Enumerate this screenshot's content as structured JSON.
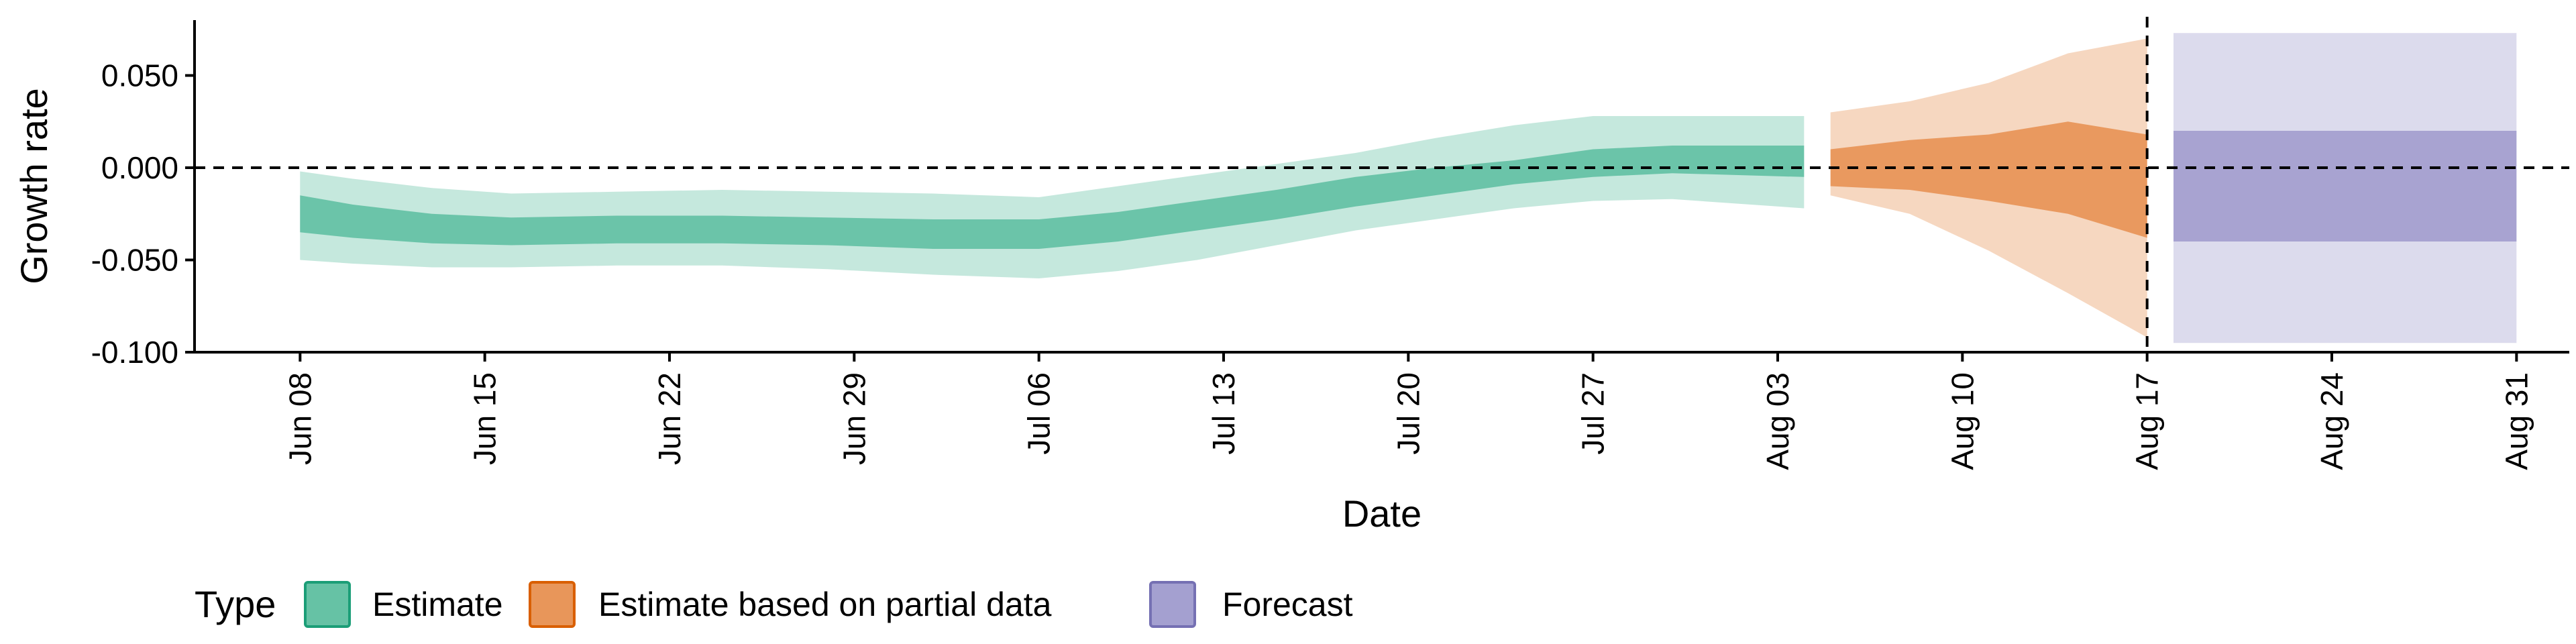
{
  "chart_data": {
    "type": "area",
    "xlabel": "Date",
    "ylabel": "Growth rate",
    "ylim": [
      -0.1,
      0.08
    ],
    "xlim": [
      "2021-06-04",
      "2021-09-02"
    ],
    "x_ticks": [
      "2021-06-08",
      "2021-06-15",
      "2021-06-22",
      "2021-06-29",
      "2021-07-06",
      "2021-07-13",
      "2021-07-20",
      "2021-07-27",
      "2021-08-03",
      "2021-08-10",
      "2021-08-17",
      "2021-08-24",
      "2021-08-31"
    ],
    "x_tick_labels": [
      "Jun 08",
      "Jun 15",
      "Jun 22",
      "Jun 29",
      "Jul 06",
      "Jul 13",
      "Jul 20",
      "Jul 27",
      "Aug 03",
      "Aug 10",
      "Aug 17",
      "Aug 24",
      "Aug 31"
    ],
    "y_ticks": [
      0.05,
      0.0,
      -0.05,
      -0.1
    ],
    "y_tick_labels": [
      "0.050",
      "0.000",
      "-0.050",
      "-0.100"
    ],
    "reference_lines": {
      "horizontal_y": 0.0,
      "vertical_x": "2021-08-17",
      "style": "dashed"
    },
    "grid": false,
    "legend": {
      "title": "Type",
      "placement": "bottom-left",
      "entries": [
        {
          "label": "Estimate",
          "color": "#66c2a5"
        },
        {
          "label": "Estimate based on partial data",
          "color": "#e8965a"
        },
        {
          "label": "Forecast",
          "color": "#a4a0d0"
        }
      ]
    },
    "series": [
      {
        "name": "Estimate",
        "color": "#66c2a5",
        "points": [
          {
            "x": "2021-06-08",
            "lo90": -0.05,
            "lo50": -0.035,
            "hi50": -0.015,
            "hi90": -0.002
          },
          {
            "x": "2021-06-10",
            "lo90": -0.052,
            "lo50": -0.038,
            "hi50": -0.02,
            "hi90": -0.006
          },
          {
            "x": "2021-06-13",
            "lo90": -0.054,
            "lo50": -0.041,
            "hi50": -0.025,
            "hi90": -0.011
          },
          {
            "x": "2021-06-16",
            "lo90": -0.054,
            "lo50": -0.042,
            "hi50": -0.027,
            "hi90": -0.014
          },
          {
            "x": "2021-06-20",
            "lo90": -0.053,
            "lo50": -0.041,
            "hi50": -0.026,
            "hi90": -0.013
          },
          {
            "x": "2021-06-24",
            "lo90": -0.053,
            "lo50": -0.041,
            "hi50": -0.026,
            "hi90": -0.012
          },
          {
            "x": "2021-06-28",
            "lo90": -0.055,
            "lo50": -0.042,
            "hi50": -0.027,
            "hi90": -0.013
          },
          {
            "x": "2021-07-02",
            "lo90": -0.058,
            "lo50": -0.044,
            "hi50": -0.028,
            "hi90": -0.014
          },
          {
            "x": "2021-07-06",
            "lo90": -0.06,
            "lo50": -0.044,
            "hi50": -0.028,
            "hi90": -0.016
          },
          {
            "x": "2021-07-09",
            "lo90": -0.056,
            "lo50": -0.04,
            "hi50": -0.024,
            "hi90": -0.01
          },
          {
            "x": "2021-07-12",
            "lo90": -0.05,
            "lo50": -0.034,
            "hi50": -0.018,
            "hi90": -0.004
          },
          {
            "x": "2021-07-15",
            "lo90": -0.042,
            "lo50": -0.028,
            "hi50": -0.012,
            "hi90": 0.002
          },
          {
            "x": "2021-07-18",
            "lo90": -0.034,
            "lo50": -0.021,
            "hi50": -0.005,
            "hi90": 0.008
          },
          {
            "x": "2021-07-21",
            "lo90": -0.028,
            "lo50": -0.015,
            "hi50": 0.0,
            "hi90": 0.016
          },
          {
            "x": "2021-07-24",
            "lo90": -0.022,
            "lo50": -0.009,
            "hi50": 0.004,
            "hi90": 0.023
          },
          {
            "x": "2021-07-27",
            "lo90": -0.018,
            "lo50": -0.005,
            "hi50": 0.01,
            "hi90": 0.028
          },
          {
            "x": "2021-07-30",
            "lo90": -0.017,
            "lo50": -0.003,
            "hi50": 0.012,
            "hi90": 0.028
          },
          {
            "x": "2021-08-04",
            "lo90": -0.022,
            "lo50": -0.005,
            "hi50": 0.012,
            "hi90": 0.028
          }
        ]
      },
      {
        "name": "Estimate based on partial data",
        "color": "#e8965a",
        "points": [
          {
            "x": "2021-08-05",
            "lo90": -0.015,
            "lo50": -0.01,
            "hi50": 0.01,
            "hi90": 0.03
          },
          {
            "x": "2021-08-08",
            "lo90": -0.025,
            "lo50": -0.012,
            "hi50": 0.015,
            "hi90": 0.036
          },
          {
            "x": "2021-08-11",
            "lo90": -0.045,
            "lo50": -0.018,
            "hi50": 0.018,
            "hi90": 0.046
          },
          {
            "x": "2021-08-14",
            "lo90": -0.068,
            "lo50": -0.025,
            "hi50": 0.025,
            "hi90": 0.062
          },
          {
            "x": "2021-08-17",
            "lo90": -0.092,
            "lo50": -0.038,
            "hi50": 0.018,
            "hi90": 0.07
          }
        ]
      },
      {
        "name": "Forecast",
        "color": "#a4a0d0",
        "points": [
          {
            "x": "2021-08-18",
            "lo90": -0.095,
            "lo50": -0.04,
            "hi50": 0.02,
            "hi90": 0.073
          },
          {
            "x": "2021-08-31",
            "lo90": -0.095,
            "lo50": -0.04,
            "hi50": 0.02,
            "hi90": 0.073
          }
        ]
      }
    ]
  }
}
